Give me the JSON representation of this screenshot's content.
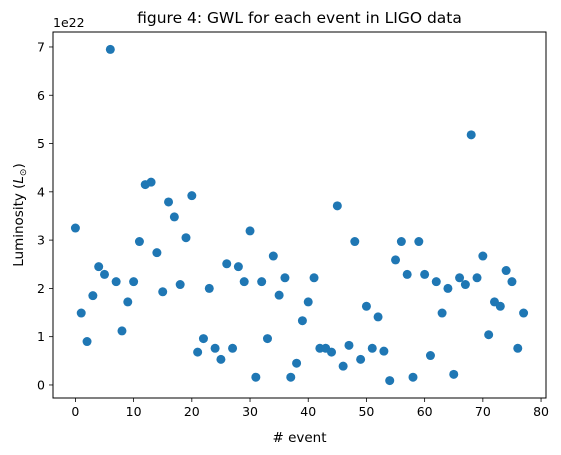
{
  "chart_data": {
    "type": "scatter",
    "title": "figure 4: GWL for each event in LIGO data",
    "xlabel": "# event",
    "ylabel_main": "Luminosity (",
    "ylabel_symbol": "L",
    "ylabel_sub": "⊙",
    "ylabel_close": ")",
    "y_offset_label": "1e22",
    "xlim": [
      -3.85,
      80.85
    ],
    "ylim": [
      -0.27,
      7.31
    ],
    "x_ticks": [
      0,
      10,
      20,
      30,
      40,
      50,
      60,
      70,
      80
    ],
    "y_ticks": [
      0,
      1,
      2,
      3,
      4,
      5,
      6,
      7
    ],
    "marker_color": "#1f77b4",
    "grid": false,
    "x": [
      0,
      1,
      2,
      3,
      4,
      5,
      6,
      7,
      8,
      9,
      10,
      11,
      12,
      13,
      14,
      15,
      16,
      17,
      18,
      19,
      20,
      21,
      22,
      23,
      24,
      25,
      26,
      27,
      28,
      29,
      30,
      31,
      32,
      33,
      34,
      35,
      36,
      37,
      38,
      39,
      40,
      41,
      42,
      43,
      44,
      45,
      46,
      47,
      48,
      49,
      50,
      51,
      52,
      53,
      54,
      55,
      56,
      57,
      58,
      59,
      60,
      61,
      62,
      63,
      64,
      65,
      66,
      67,
      68,
      69,
      70,
      71,
      72,
      73,
      74,
      75,
      76,
      77
    ],
    "y": [
      3.25,
      1.49,
      0.9,
      1.85,
      2.45,
      2.29,
      6.95,
      2.14,
      1.12,
      1.72,
      2.14,
      2.97,
      4.15,
      4.2,
      2.74,
      1.93,
      3.79,
      3.48,
      2.08,
      3.05,
      3.92,
      0.68,
      0.96,
      2.0,
      0.76,
      0.53,
      2.51,
      0.76,
      2.45,
      2.14,
      3.19,
      0.16,
      2.14,
      0.96,
      2.67,
      1.86,
      2.22,
      0.16,
      0.45,
      1.33,
      1.72,
      2.22,
      0.76,
      0.76,
      0.68,
      3.71,
      0.39,
      0.82,
      2.97,
      0.53,
      1.63,
      0.76,
      1.41,
      0.7,
      0.09,
      2.59,
      2.97,
      2.29,
      0.16,
      2.97,
      2.29,
      0.61,
      2.14,
      1.49,
      2.0,
      0.22,
      2.22,
      2.08,
      5.18,
      2.22,
      2.67,
      1.04,
      1.72,
      1.63,
      2.37,
      2.14,
      0.76,
      1.49
    ]
  }
}
